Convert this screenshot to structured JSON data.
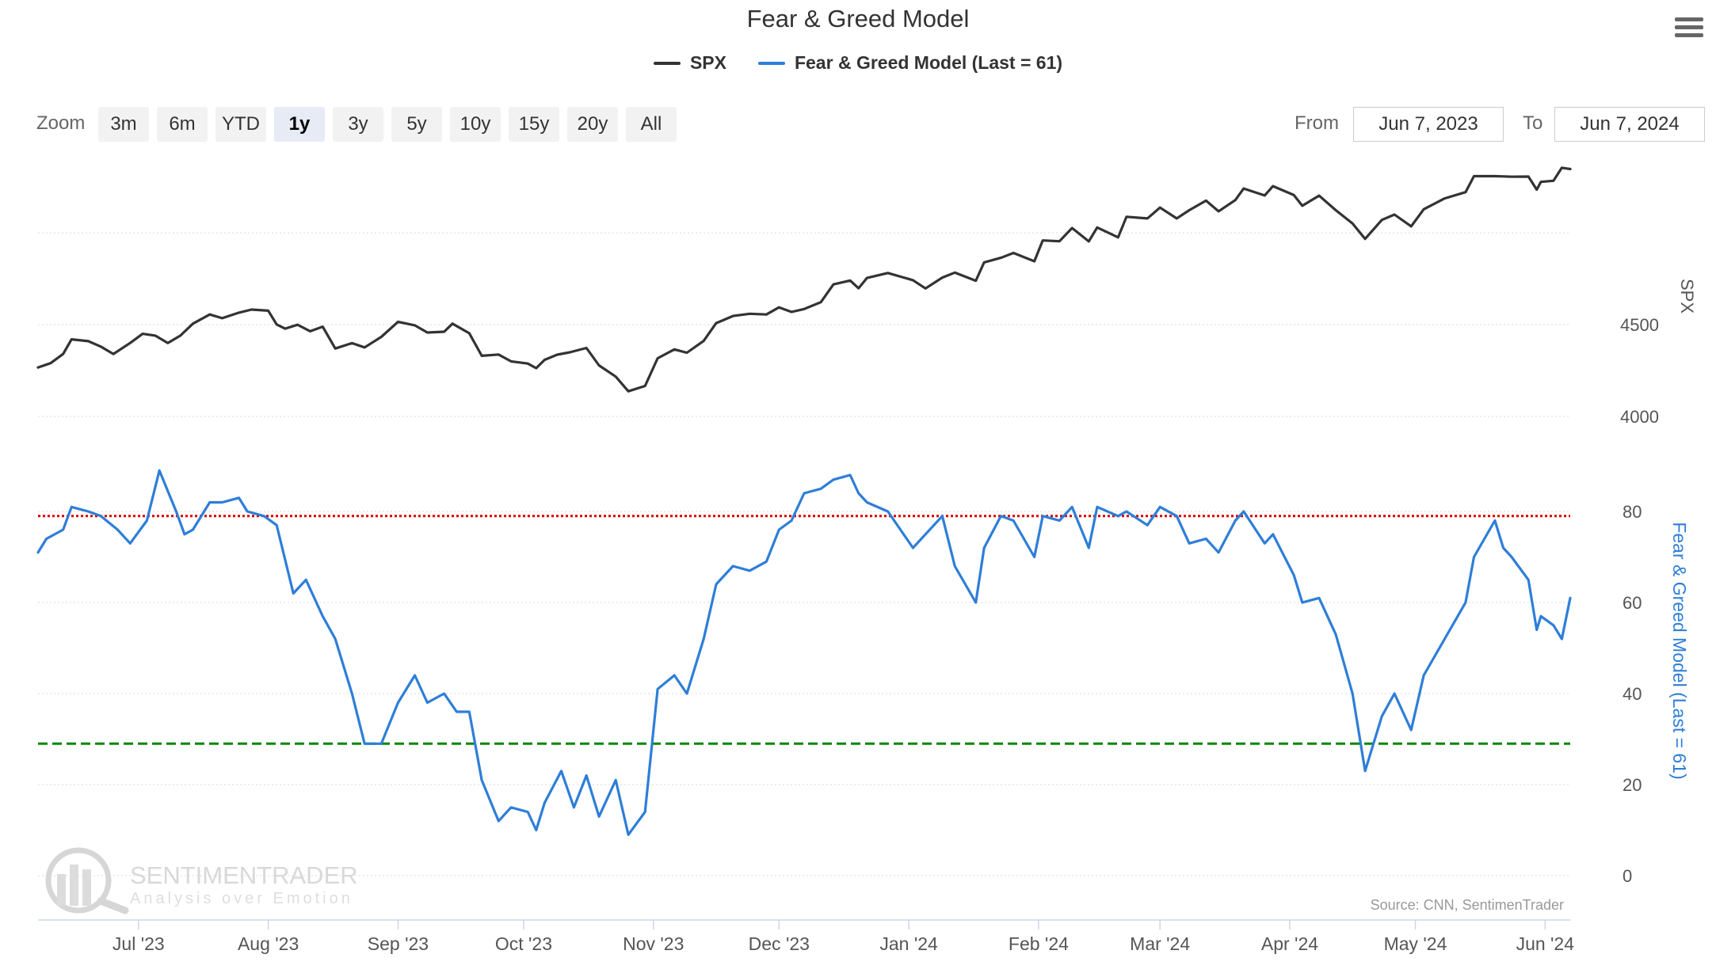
{
  "header": {
    "title": "Fear & Greed Model",
    "menu_icon": "hamburger-menu-icon"
  },
  "legend": {
    "spx_label": "SPX",
    "fg_label": "Fear & Greed Model (Last = 61)"
  },
  "toolbar": {
    "zoom_label": "Zoom",
    "zoom_options": [
      "3m",
      "6m",
      "YTD",
      "1y",
      "3y",
      "5y",
      "10y",
      "15y",
      "20y",
      "All"
    ],
    "active_zoom": "1y",
    "from_label": "From",
    "from_value": "Jun 7, 2023",
    "to_label": "To",
    "to_value": "Jun 7, 2024"
  },
  "watermark": {
    "brand": "SENTIMENTRADER",
    "tagline": "Analysis over Emotion"
  },
  "credits": "Source: CNN, SentimenTrader",
  "colors": {
    "spx": "#333333",
    "fear_greed": "#2e7ed8",
    "greed_line": "#d90000",
    "fear_line": "#008800",
    "grid": "#d8d8d8"
  },
  "chart_data": {
    "type": "line",
    "x_axis": {
      "min": "2023-06-07",
      "max": "2024-06-07",
      "tick_labels": [
        "Jul '23",
        "Aug '23",
        "Sep '23",
        "Oct '23",
        "Nov '23",
        "Dec '23",
        "Jan '24",
        "Feb '24",
        "Mar '24",
        "Apr '24",
        "May '24",
        "Jun '24"
      ],
      "tick_dates": [
        "2023-07-01",
        "2023-08-01",
        "2023-09-01",
        "2023-10-01",
        "2023-11-01",
        "2023-12-01",
        "2024-01-01",
        "2024-02-01",
        "2024-03-01",
        "2024-04-01",
        "2024-05-01",
        "2024-06-01"
      ]
    },
    "spx_axis": {
      "title": "SPX",
      "ticks": [
        4000,
        4500
      ],
      "range": [
        4000,
        5360
      ]
    },
    "fg_axis": {
      "title": "Fear & Greed Model (Last = 61)",
      "ticks": [
        0,
        20,
        40,
        60,
        80
      ],
      "range": [
        0,
        100
      ]
    },
    "thresholds": [
      {
        "value": 79,
        "style": "dotted",
        "color": "#d90000"
      },
      {
        "value": 29,
        "style": "dashed",
        "color": "#008800"
      }
    ],
    "grid": true,
    "series": [
      {
        "name": "SPX",
        "axis": "spx",
        "points": [
          [
            "2023-06-07",
            4267
          ],
          [
            "2023-06-10",
            4290
          ],
          [
            "2023-06-13",
            4340
          ],
          [
            "2023-06-15",
            4420
          ],
          [
            "2023-06-19",
            4410
          ],
          [
            "2023-06-22",
            4380
          ],
          [
            "2023-06-25",
            4340
          ],
          [
            "2023-06-29",
            4400
          ],
          [
            "2023-07-02",
            4450
          ],
          [
            "2023-07-05",
            4440
          ],
          [
            "2023-07-08",
            4400
          ],
          [
            "2023-07-11",
            4440
          ],
          [
            "2023-07-14",
            4505
          ],
          [
            "2023-07-18",
            4555
          ],
          [
            "2023-07-21",
            4535
          ],
          [
            "2023-07-25",
            4565
          ],
          [
            "2023-07-28",
            4582
          ],
          [
            "2023-08-01",
            4576
          ],
          [
            "2023-08-03",
            4501
          ],
          [
            "2023-08-05",
            4478
          ],
          [
            "2023-08-08",
            4499
          ],
          [
            "2023-08-11",
            4464
          ],
          [
            "2023-08-14",
            4489
          ],
          [
            "2023-08-17",
            4370
          ],
          [
            "2023-08-21",
            4399
          ],
          [
            "2023-08-24",
            4376
          ],
          [
            "2023-08-28",
            4433
          ],
          [
            "2023-09-01",
            4515
          ],
          [
            "2023-09-05",
            4496
          ],
          [
            "2023-09-08",
            4457
          ],
          [
            "2023-09-12",
            4461
          ],
          [
            "2023-09-14",
            4505
          ],
          [
            "2023-09-18",
            4453
          ],
          [
            "2023-09-21",
            4330
          ],
          [
            "2023-09-25",
            4337
          ],
          [
            "2023-09-28",
            4300
          ],
          [
            "2023-10-02",
            4288
          ],
          [
            "2023-10-04",
            4263
          ],
          [
            "2023-10-06",
            4308
          ],
          [
            "2023-10-09",
            4336
          ],
          [
            "2023-10-12",
            4349
          ],
          [
            "2023-10-16",
            4373
          ],
          [
            "2023-10-19",
            4278
          ],
          [
            "2023-10-23",
            4217
          ],
          [
            "2023-10-26",
            4137
          ],
          [
            "2023-10-30",
            4166
          ],
          [
            "2023-11-02",
            4317
          ],
          [
            "2023-11-06",
            4365
          ],
          [
            "2023-11-09",
            4347
          ],
          [
            "2023-11-13",
            4411
          ],
          [
            "2023-11-16",
            4508
          ],
          [
            "2023-11-20",
            4547
          ],
          [
            "2023-11-24",
            4559
          ],
          [
            "2023-11-28",
            4555
          ],
          [
            "2023-12-01",
            4594
          ],
          [
            "2023-12-04",
            4569
          ],
          [
            "2023-12-07",
            4585
          ],
          [
            "2023-12-11",
            4622
          ],
          [
            "2023-12-14",
            4719
          ],
          [
            "2023-12-18",
            4740
          ],
          [
            "2023-12-20",
            4698
          ],
          [
            "2023-12-22",
            4754
          ],
          [
            "2023-12-27",
            4781
          ],
          [
            "2024-01-02",
            4742
          ],
          [
            "2024-01-05",
            4697
          ],
          [
            "2024-01-09",
            4756
          ],
          [
            "2024-01-12",
            4783
          ],
          [
            "2024-01-17",
            4739
          ],
          [
            "2024-01-19",
            4839
          ],
          [
            "2024-01-23",
            4864
          ],
          [
            "2024-01-26",
            4890
          ],
          [
            "2024-01-31",
            4845
          ],
          [
            "2024-02-02",
            4958
          ],
          [
            "2024-02-06",
            4954
          ],
          [
            "2024-02-09",
            5026
          ],
          [
            "2024-02-13",
            4953
          ],
          [
            "2024-02-15",
            5029
          ],
          [
            "2024-02-20",
            4975
          ],
          [
            "2024-02-22",
            5087
          ],
          [
            "2024-02-27",
            5078
          ],
          [
            "2024-03-01",
            5137
          ],
          [
            "2024-03-05",
            5078
          ],
          [
            "2024-03-08",
            5123
          ],
          [
            "2024-03-12",
            5175
          ],
          [
            "2024-03-15",
            5117
          ],
          [
            "2024-03-19",
            5178
          ],
          [
            "2024-03-21",
            5241
          ],
          [
            "2024-03-26",
            5203
          ],
          [
            "2024-03-28",
            5254
          ],
          [
            "2024-04-02",
            5205
          ],
          [
            "2024-04-04",
            5147
          ],
          [
            "2024-04-08",
            5202
          ],
          [
            "2024-04-12",
            5123
          ],
          [
            "2024-04-16",
            5051
          ],
          [
            "2024-04-19",
            4967
          ],
          [
            "2024-04-23",
            5070
          ],
          [
            "2024-04-26",
            5099
          ],
          [
            "2024-04-30",
            5035
          ],
          [
            "2024-05-03",
            5128
          ],
          [
            "2024-05-08",
            5187
          ],
          [
            "2024-05-13",
            5221
          ],
          [
            "2024-05-15",
            5308
          ],
          [
            "2024-05-20",
            5308
          ],
          [
            "2024-05-22",
            5307
          ],
          [
            "2024-05-24",
            5305
          ],
          [
            "2024-05-28",
            5306
          ],
          [
            "2024-05-30",
            5235
          ],
          [
            "2024-05-31",
            5277
          ],
          [
            "2024-06-03",
            5283
          ],
          [
            "2024-06-05",
            5354
          ],
          [
            "2024-06-07",
            5347
          ]
        ]
      },
      {
        "name": "Fear & Greed Model (Last = 61)",
        "axis": "fg",
        "points": [
          [
            "2023-06-07",
            71
          ],
          [
            "2023-06-09",
            74
          ],
          [
            "2023-06-13",
            76
          ],
          [
            "2023-06-15",
            81
          ],
          [
            "2023-06-19",
            80
          ],
          [
            "2023-06-22",
            79
          ],
          [
            "2023-06-26",
            76
          ],
          [
            "2023-06-29",
            73
          ],
          [
            "2023-07-03",
            78
          ],
          [
            "2023-07-06",
            89
          ],
          [
            "2023-07-10",
            80
          ],
          [
            "2023-07-12",
            75
          ],
          [
            "2023-07-14",
            76
          ],
          [
            "2023-07-18",
            82
          ],
          [
            "2023-07-21",
            82
          ],
          [
            "2023-07-25",
            83
          ],
          [
            "2023-07-27",
            80
          ],
          [
            "2023-07-31",
            79
          ],
          [
            "2023-08-03",
            77
          ],
          [
            "2023-08-07",
            62
          ],
          [
            "2023-08-10",
            65
          ],
          [
            "2023-08-14",
            57
          ],
          [
            "2023-08-17",
            52
          ],
          [
            "2023-08-21",
            40
          ],
          [
            "2023-08-24",
            29
          ],
          [
            "2023-08-28",
            29
          ],
          [
            "2023-09-01",
            38
          ],
          [
            "2023-09-05",
            44
          ],
          [
            "2023-09-08",
            38
          ],
          [
            "2023-09-12",
            40
          ],
          [
            "2023-09-15",
            36
          ],
          [
            "2023-09-18",
            36
          ],
          [
            "2023-09-21",
            21
          ],
          [
            "2023-09-25",
            12
          ],
          [
            "2023-09-28",
            15
          ],
          [
            "2023-10-02",
            14
          ],
          [
            "2023-10-04",
            10
          ],
          [
            "2023-10-06",
            16
          ],
          [
            "2023-10-10",
            23
          ],
          [
            "2023-10-13",
            15
          ],
          [
            "2023-10-16",
            22
          ],
          [
            "2023-10-19",
            13
          ],
          [
            "2023-10-23",
            21
          ],
          [
            "2023-10-26",
            9
          ],
          [
            "2023-10-30",
            14
          ],
          [
            "2023-11-02",
            41
          ],
          [
            "2023-11-06",
            44
          ],
          [
            "2023-11-09",
            40
          ],
          [
            "2023-11-13",
            52
          ],
          [
            "2023-11-16",
            64
          ],
          [
            "2023-11-20",
            68
          ],
          [
            "2023-11-24",
            67
          ],
          [
            "2023-11-28",
            69
          ],
          [
            "2023-12-01",
            76
          ],
          [
            "2023-12-04",
            78
          ],
          [
            "2023-12-07",
            84
          ],
          [
            "2023-12-11",
            85
          ],
          [
            "2023-12-14",
            87
          ],
          [
            "2023-12-18",
            88
          ],
          [
            "2023-12-20",
            84
          ],
          [
            "2023-12-22",
            82
          ],
          [
            "2023-12-27",
            80
          ],
          [
            "2024-01-02",
            72
          ],
          [
            "2024-01-05",
            75
          ],
          [
            "2024-01-09",
            79
          ],
          [
            "2024-01-12",
            68
          ],
          [
            "2024-01-17",
            60
          ],
          [
            "2024-01-19",
            72
          ],
          [
            "2024-01-23",
            79
          ],
          [
            "2024-01-26",
            78
          ],
          [
            "2024-01-31",
            70
          ],
          [
            "2024-02-02",
            79
          ],
          [
            "2024-02-06",
            78
          ],
          [
            "2024-02-09",
            81
          ],
          [
            "2024-02-13",
            72
          ],
          [
            "2024-02-15",
            81
          ],
          [
            "2024-02-20",
            79
          ],
          [
            "2024-02-22",
            80
          ],
          [
            "2024-02-27",
            77
          ],
          [
            "2024-03-01",
            81
          ],
          [
            "2024-03-05",
            79
          ],
          [
            "2024-03-08",
            73
          ],
          [
            "2024-03-12",
            74
          ],
          [
            "2024-03-15",
            71
          ],
          [
            "2024-03-19",
            78
          ],
          [
            "2024-03-21",
            80
          ],
          [
            "2024-03-26",
            73
          ],
          [
            "2024-03-28",
            75
          ],
          [
            "2024-04-02",
            66
          ],
          [
            "2024-04-04",
            60
          ],
          [
            "2024-04-08",
            61
          ],
          [
            "2024-04-12",
            53
          ],
          [
            "2024-04-16",
            40
          ],
          [
            "2024-04-19",
            23
          ],
          [
            "2024-04-23",
            35
          ],
          [
            "2024-04-26",
            40
          ],
          [
            "2024-04-30",
            32
          ],
          [
            "2024-05-03",
            44
          ],
          [
            "2024-05-08",
            52
          ],
          [
            "2024-05-13",
            60
          ],
          [
            "2024-05-15",
            70
          ],
          [
            "2024-05-20",
            78
          ],
          [
            "2024-05-22",
            72
          ],
          [
            "2024-05-24",
            70
          ],
          [
            "2024-05-28",
            65
          ],
          [
            "2024-05-30",
            54
          ],
          [
            "2024-05-31",
            57
          ],
          [
            "2024-06-03",
            55
          ],
          [
            "2024-06-05",
            52
          ],
          [
            "2024-06-07",
            61
          ]
        ]
      }
    ]
  }
}
